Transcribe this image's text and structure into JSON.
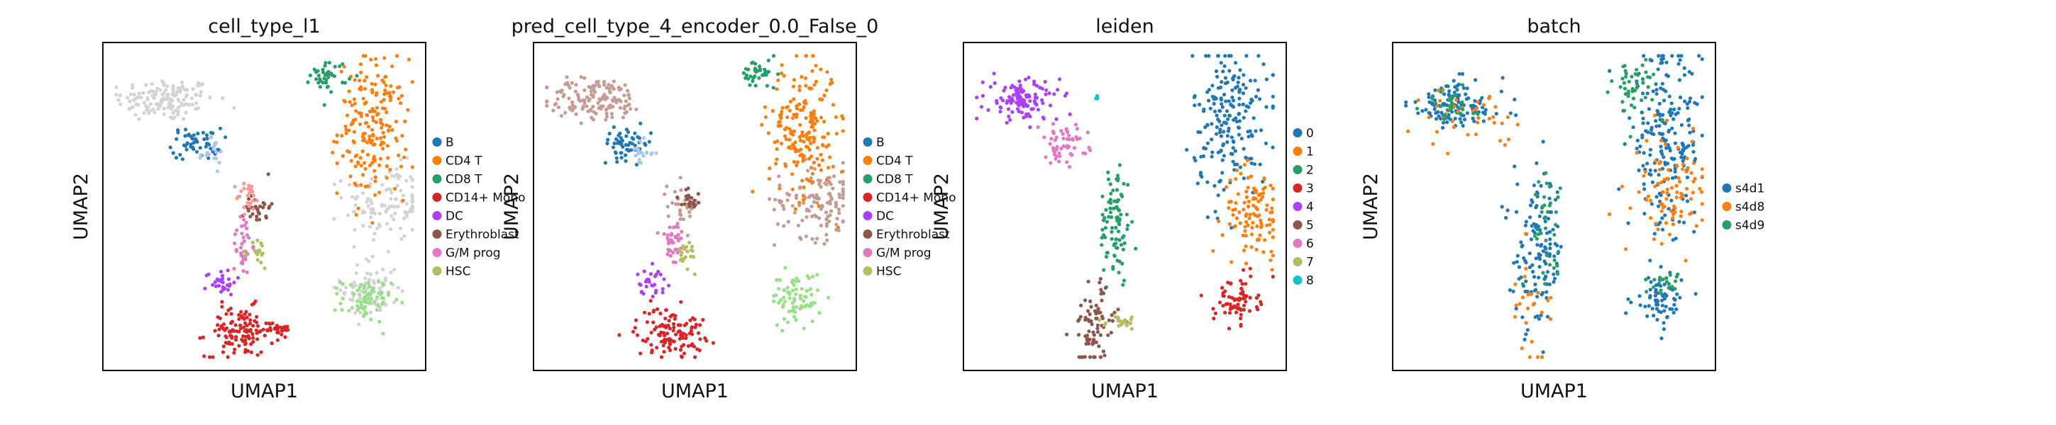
{
  "chart_data": [
    {
      "type": "scatter",
      "title": "cell_type_l1",
      "xlabel": "UMAP1",
      "ylabel": "UMAP2",
      "grid": false,
      "legend": "right",
      "legend_entries": [
        {
          "name": "B",
          "color": "#1f77b4"
        },
        {
          "name": "CD4 T",
          "color": "#ff7f0e"
        },
        {
          "name": "CD8 T",
          "color": "#279e68"
        },
        {
          "name": "CD14+ Mono",
          "color": "#d62728"
        },
        {
          "name": "DC",
          "color": "#aa40fc"
        },
        {
          "name": "Erythroblast",
          "color": "#8c564b"
        },
        {
          "name": "G/M prog",
          "color": "#e377c2"
        },
        {
          "name": "HSC",
          "color": "#b5bd61"
        }
      ],
      "clusters": [
        {
          "label": "",
          "color": "#d3d3d3",
          "x": 0.18,
          "y": 0.84,
          "sx": 0.08,
          "sy": 0.035,
          "n": 140
        },
        {
          "label": "",
          "color": "#d3d3d3",
          "x": 0.9,
          "y": 0.51,
          "sx": 0.07,
          "sy": 0.06,
          "n": 110
        },
        {
          "label": "",
          "color": "#d3d3d3",
          "x": 0.84,
          "y": 0.24,
          "sx": 0.045,
          "sy": 0.05,
          "n": 70
        },
        {
          "label": "B",
          "color": "#1f77b4",
          "x": 0.28,
          "y": 0.7,
          "sx": 0.04,
          "sy": 0.025,
          "n": 55
        },
        {
          "label": "",
          "color": "#aec7e8",
          "x": 0.33,
          "y": 0.67,
          "sx": 0.02,
          "sy": 0.02,
          "n": 18
        },
        {
          "label": "CD4 T",
          "color": "#ff7f0e",
          "x": 0.85,
          "y": 0.75,
          "sx": 0.055,
          "sy": 0.11,
          "n": 200
        },
        {
          "label": "CD8 T",
          "color": "#279e68",
          "x": 0.71,
          "y": 0.92,
          "sx": 0.03,
          "sy": 0.025,
          "n": 40
        },
        {
          "label": "",
          "color": "#98df8a",
          "x": 0.83,
          "y": 0.2,
          "sx": 0.04,
          "sy": 0.035,
          "n": 70
        },
        {
          "label": "CD14+ Mono",
          "color": "#d62728",
          "x": 0.42,
          "y": 0.1,
          "sx": 0.055,
          "sy": 0.04,
          "n": 120
        },
        {
          "label": "",
          "color": "#d62728",
          "x": 0.54,
          "y": 0.11,
          "sx": 0.03,
          "sy": 0.01,
          "n": 25
        },
        {
          "label": "DC",
          "color": "#aa40fc",
          "x": 0.36,
          "y": 0.26,
          "sx": 0.025,
          "sy": 0.02,
          "n": 30
        },
        {
          "label": "Erythroblast",
          "color": "#8c564b",
          "x": 0.48,
          "y": 0.5,
          "sx": 0.02,
          "sy": 0.03,
          "n": 30
        },
        {
          "label": "",
          "color": "#ff9896",
          "x": 0.45,
          "y": 0.53,
          "sx": 0.02,
          "sy": 0.025,
          "n": 25
        },
        {
          "label": "G/M prog",
          "color": "#e377c2",
          "x": 0.43,
          "y": 0.38,
          "sx": 0.015,
          "sy": 0.05,
          "n": 35
        },
        {
          "label": "HSC",
          "color": "#b5bd61",
          "x": 0.48,
          "y": 0.35,
          "sx": 0.015,
          "sy": 0.025,
          "n": 20
        }
      ]
    },
    {
      "type": "scatter",
      "title": "pred_cell_type_4_encoder_0.0_False_0",
      "xlabel": "UMAP1",
      "ylabel": "UMAP2",
      "grid": false,
      "legend": "right",
      "legend_entries": [
        {
          "name": "B",
          "color": "#1f77b4"
        },
        {
          "name": "CD4 T",
          "color": "#ff7f0e"
        },
        {
          "name": "CD8 T",
          "color": "#279e68"
        },
        {
          "name": "CD14+ Mono",
          "color": "#d62728"
        },
        {
          "name": "DC",
          "color": "#aa40fc"
        },
        {
          "name": "Erythroblast",
          "color": "#8c564b"
        },
        {
          "name": "G/M prog",
          "color": "#e377c2"
        },
        {
          "name": "HSC",
          "color": "#b5bd61"
        }
      ],
      "clusters": [
        {
          "label": "",
          "color": "#c49c94",
          "x": 0.18,
          "y": 0.84,
          "sx": 0.08,
          "sy": 0.035,
          "n": 140
        },
        {
          "label": "",
          "color": "#c49c94",
          "x": 0.9,
          "y": 0.52,
          "sx": 0.07,
          "sy": 0.06,
          "n": 120
        },
        {
          "label": "",
          "color": "#c49c94",
          "x": 0.46,
          "y": 0.5,
          "sx": 0.025,
          "sy": 0.04,
          "n": 30
        },
        {
          "label": "B",
          "color": "#1f77b4",
          "x": 0.28,
          "y": 0.7,
          "sx": 0.04,
          "sy": 0.025,
          "n": 55
        },
        {
          "label": "",
          "color": "#aec7e8",
          "x": 0.33,
          "y": 0.67,
          "sx": 0.02,
          "sy": 0.02,
          "n": 18
        },
        {
          "label": "CD4 T",
          "color": "#ff7f0e",
          "x": 0.85,
          "y": 0.75,
          "sx": 0.055,
          "sy": 0.11,
          "n": 200
        },
        {
          "label": "CD8 T",
          "color": "#279e68",
          "x": 0.71,
          "y": 0.92,
          "sx": 0.03,
          "sy": 0.025,
          "n": 40
        },
        {
          "label": "",
          "color": "#98df8a",
          "x": 0.83,
          "y": 0.21,
          "sx": 0.04,
          "sy": 0.04,
          "n": 75
        },
        {
          "label": "CD14+ Mono",
          "color": "#d62728",
          "x": 0.42,
          "y": 0.1,
          "sx": 0.055,
          "sy": 0.04,
          "n": 120
        },
        {
          "label": "DC",
          "color": "#aa40fc",
          "x": 0.36,
          "y": 0.26,
          "sx": 0.025,
          "sy": 0.02,
          "n": 30
        },
        {
          "label": "Erythroblast",
          "color": "#8c564b",
          "x": 0.48,
          "y": 0.52,
          "sx": 0.02,
          "sy": 0.025,
          "n": 20
        },
        {
          "label": "G/M prog",
          "color": "#e377c2",
          "x": 0.43,
          "y": 0.38,
          "sx": 0.015,
          "sy": 0.05,
          "n": 35
        },
        {
          "label": "HSC",
          "color": "#b5bd61",
          "x": 0.48,
          "y": 0.35,
          "sx": 0.015,
          "sy": 0.025,
          "n": 20
        }
      ]
    },
    {
      "type": "scatter",
      "title": "leiden",
      "xlabel": "UMAP1",
      "ylabel": "UMAP2",
      "grid": false,
      "legend": "right",
      "legend_entries": [
        {
          "name": "0",
          "color": "#1f77b4"
        },
        {
          "name": "1",
          "color": "#ff7f0e"
        },
        {
          "name": "2",
          "color": "#279e68"
        },
        {
          "name": "3",
          "color": "#d62728"
        },
        {
          "name": "4",
          "color": "#aa40fc"
        },
        {
          "name": "5",
          "color": "#8c564b"
        },
        {
          "name": "6",
          "color": "#e377c2"
        },
        {
          "name": "7",
          "color": "#b5bd61"
        },
        {
          "name": "8",
          "color": "#17becf"
        }
      ],
      "clusters": [
        {
          "label": "0",
          "color": "#1f77b4",
          "x": 0.84,
          "y": 0.78,
          "sx": 0.06,
          "sy": 0.12,
          "n": 200
        },
        {
          "label": "1",
          "color": "#ff7f0e",
          "x": 0.92,
          "y": 0.48,
          "sx": 0.05,
          "sy": 0.07,
          "n": 110
        },
        {
          "label": "2",
          "color": "#279e68",
          "x": 0.47,
          "y": 0.45,
          "sx": 0.025,
          "sy": 0.1,
          "n": 90
        },
        {
          "label": "3",
          "color": "#d62728",
          "x": 0.86,
          "y": 0.2,
          "sx": 0.035,
          "sy": 0.035,
          "n": 70
        },
        {
          "label": "4",
          "color": "#aa40fc",
          "x": 0.17,
          "y": 0.84,
          "sx": 0.06,
          "sy": 0.035,
          "n": 120
        },
        {
          "label": "5",
          "color": "#8c564b",
          "x": 0.4,
          "y": 0.12,
          "sx": 0.035,
          "sy": 0.07,
          "n": 80
        },
        {
          "label": "6",
          "color": "#e377c2",
          "x": 0.3,
          "y": 0.7,
          "sx": 0.04,
          "sy": 0.03,
          "n": 55
        },
        {
          "label": "7",
          "color": "#b5bd61",
          "x": 0.5,
          "y": 0.13,
          "sx": 0.03,
          "sy": 0.01,
          "n": 20
        },
        {
          "label": "8",
          "color": "#17becf",
          "x": 0.41,
          "y": 0.85,
          "sx": 0.003,
          "sy": 0.003,
          "n": 4
        }
      ]
    },
    {
      "type": "scatter",
      "title": "batch",
      "xlabel": "UMAP1",
      "ylabel": "UMAP2",
      "grid": false,
      "legend": "right",
      "legend_entries": [
        {
          "name": "s4d1",
          "color": "#1f77b4"
        },
        {
          "name": "s4d8",
          "color": "#ff7f0e"
        },
        {
          "name": "s4d9",
          "color": "#279e68"
        }
      ],
      "clusters": [
        {
          "label": "s4d1",
          "color": "#1f77b4",
          "x": 0.18,
          "y": 0.82,
          "sx": 0.08,
          "sy": 0.04,
          "n": 120
        },
        {
          "label": "s4d1",
          "color": "#1f77b4",
          "x": 0.86,
          "y": 0.7,
          "sx": 0.06,
          "sy": 0.14,
          "n": 220
        },
        {
          "label": "s4d1",
          "color": "#1f77b4",
          "x": 0.45,
          "y": 0.35,
          "sx": 0.04,
          "sy": 0.12,
          "n": 130
        },
        {
          "label": "s4d1",
          "color": "#1f77b4",
          "x": 0.84,
          "y": 0.2,
          "sx": 0.04,
          "sy": 0.035,
          "n": 60
        },
        {
          "label": "s4d8",
          "color": "#ff7f0e",
          "x": 0.88,
          "y": 0.55,
          "sx": 0.06,
          "sy": 0.08,
          "n": 90
        },
        {
          "label": "s4d8",
          "color": "#ff7f0e",
          "x": 0.22,
          "y": 0.78,
          "sx": 0.07,
          "sy": 0.05,
          "n": 40
        },
        {
          "label": "s4d8",
          "color": "#ff7f0e",
          "x": 0.42,
          "y": 0.2,
          "sx": 0.04,
          "sy": 0.08,
          "n": 25
        },
        {
          "label": "s4d9",
          "color": "#279e68",
          "x": 0.76,
          "y": 0.88,
          "sx": 0.035,
          "sy": 0.05,
          "n": 45
        },
        {
          "label": "s4d9",
          "color": "#279e68",
          "x": 0.86,
          "y": 0.26,
          "sx": 0.025,
          "sy": 0.02,
          "n": 20
        },
        {
          "label": "s4d9",
          "color": "#279e68",
          "x": 0.47,
          "y": 0.45,
          "sx": 0.03,
          "sy": 0.08,
          "n": 35
        },
        {
          "label": "s4d9",
          "color": "#279e68",
          "x": 0.15,
          "y": 0.83,
          "sx": 0.05,
          "sy": 0.03,
          "n": 25
        }
      ]
    }
  ]
}
